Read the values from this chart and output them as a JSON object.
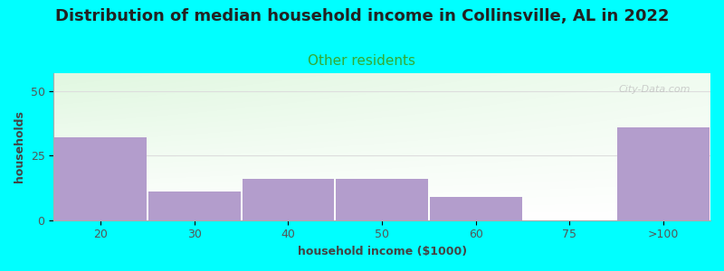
{
  "title": "Distribution of median household income in Collinsville, AL in 2022",
  "subtitle": "Other residents",
  "xlabel": "household income ($1000)",
  "ylabel": "households",
  "background_color": "#00FFFF",
  "bar_color": "#b39dcc",
  "categories": [
    "20",
    "30",
    "40",
    "50",
    "60",
    "75",
    ">100"
  ],
  "values": [
    32,
    11,
    16,
    16,
    9,
    0,
    36
  ],
  "ylim": [
    0,
    57
  ],
  "yticks": [
    0,
    25,
    50
  ],
  "title_fontsize": 13,
  "subtitle_fontsize": 11,
  "subtitle_color": "#33aa33",
  "axis_label_fontsize": 9,
  "tick_fontsize": 9,
  "watermark": "City-Data.com"
}
